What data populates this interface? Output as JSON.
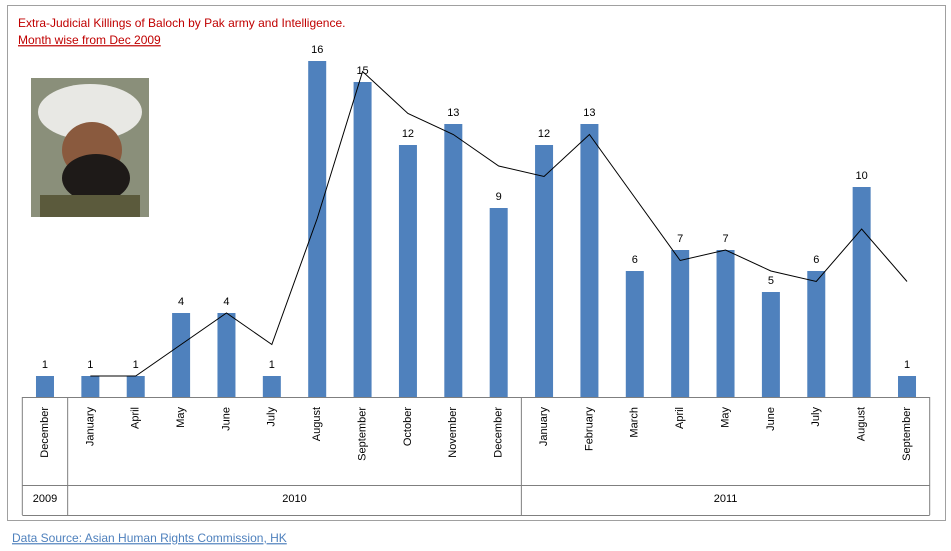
{
  "chart_data": {
    "type": "bar",
    "title": "Extra-Judicial Killings of Baloch by Pak army and Intelligence.",
    "subtitle": "Month wise from Dec 2009",
    "source": "Data Source: Asian Human Rights Commission, HK",
    "categories": [
      "December",
      "January",
      "April",
      "May",
      "June",
      "July",
      "August",
      "September",
      "October",
      "November",
      "December",
      "January",
      "February",
      "March",
      "April",
      "May",
      "June",
      "July",
      "August",
      "September"
    ],
    "groups": [
      {
        "label": "2009",
        "span": 1
      },
      {
        "label": "2010",
        "span": 10
      },
      {
        "label": "2011",
        "span": 9
      }
    ],
    "series": [
      {
        "type": "bar",
        "color": "#4f81bd",
        "values": [
          1,
          1,
          1,
          4,
          4,
          1,
          16,
          15,
          12,
          13,
          9,
          12,
          13,
          6,
          7,
          7,
          5,
          6,
          10,
          1
        ]
      },
      {
        "type": "line",
        "color": "#000000",
        "values": [
          null,
          1,
          1,
          2.5,
          4,
          2.5,
          8.5,
          15.5,
          13.5,
          12.5,
          11,
          10.5,
          12.5,
          9.5,
          6.5,
          7,
          6,
          5.5,
          8,
          5.5
        ]
      }
    ],
    "ylim": [
      0,
      18
    ]
  }
}
